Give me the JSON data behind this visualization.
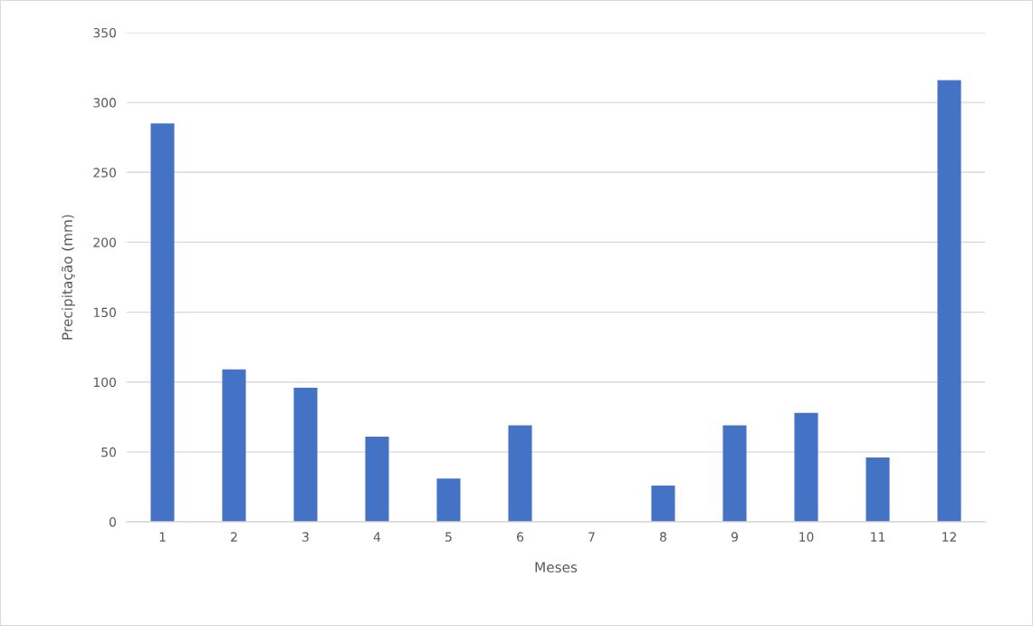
{
  "chart_data": {
    "type": "bar",
    "xlabel": "Meses",
    "ylabel": "Precipitação (mm)",
    "categories": [
      "1",
      "2",
      "3",
      "4",
      "5",
      "6",
      "7",
      "8",
      "9",
      "10",
      "11",
      "12"
    ],
    "values": [
      285,
      109,
      96,
      61,
      31,
      69,
      0,
      26,
      69,
      78,
      46,
      316
    ],
    "color": "#4472c4",
    "ylim": [
      0,
      350
    ],
    "yticks": [
      0,
      50,
      100,
      150,
      200,
      250,
      300,
      350
    ],
    "grid": "y"
  }
}
